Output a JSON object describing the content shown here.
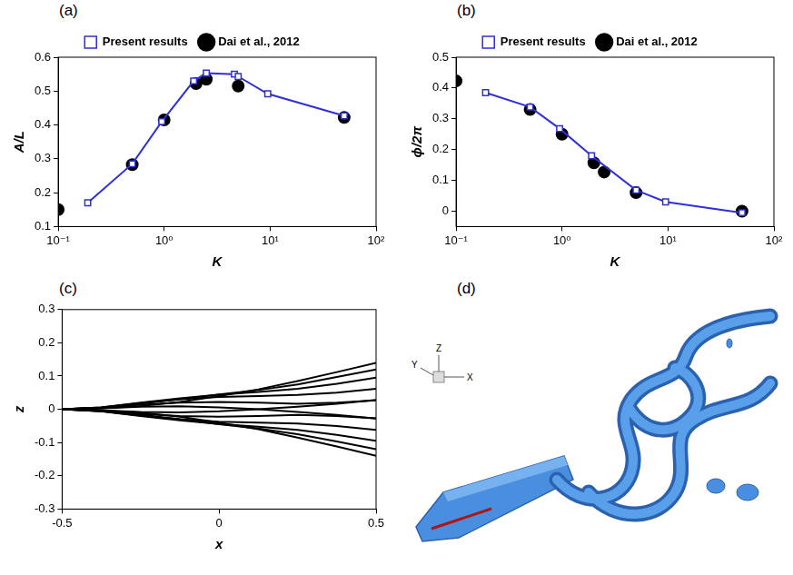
{
  "chart_data": [
    {
      "label": "(a)",
      "type": "line",
      "x_label": "K",
      "y_label": "A/L",
      "log": "x",
      "grid": false,
      "legend": "top",
      "xlim": [
        0.1,
        100
      ],
      "xticks": [
        {
          "value": 0.1,
          "label": "10⁻¹"
        },
        {
          "value": 1,
          "label": "10⁰"
        },
        {
          "value": 10,
          "label": "10¹"
        },
        {
          "value": 100,
          "label": "10²"
        }
      ],
      "ylim": [
        0.1,
        0.6
      ],
      "yticks": [
        0.1,
        0.2,
        0.3,
        0.4,
        0.5,
        0.6
      ],
      "series": [
        {
          "name": "Present results",
          "color": "#2f2fd8",
          "marker": "square_open",
          "line_style": "solid",
          "x": [
            0.19,
            0.5,
            0.95,
            1.9,
            2.5,
            4.6,
            5.0,
            9.5,
            50
          ],
          "values": [
            0.17,
            0.285,
            0.41,
            0.53,
            0.553,
            0.55,
            0.543,
            0.492,
            0.427
          ]
        },
        {
          "name": "Dai et al., 2012",
          "color": "#000000",
          "marker": "circle",
          "line_style": "none",
          "x": [
            0.1,
            0.5,
            1.0,
            2.0,
            2.5,
            5.0,
            50
          ],
          "values": [
            0.15,
            0.283,
            0.415,
            0.522,
            0.535,
            0.515,
            0.422
          ]
        }
      ]
    },
    {
      "label": "(b)",
      "type": "line",
      "x_label": "K",
      "y_label": "ϕ/2π",
      "log": "x",
      "grid": false,
      "legend": "top",
      "xlim": [
        0.1,
        100
      ],
      "xticks": [
        {
          "value": 0.1,
          "label": "10⁻¹"
        },
        {
          "value": 1,
          "label": "10⁰"
        },
        {
          "value": 10,
          "label": "10¹"
        },
        {
          "value": 100,
          "label": "10²"
        }
      ],
      "ylim": [
        -0.05,
        0.5
      ],
      "yticks": [
        0,
        0.1,
        0.2,
        0.3,
        0.4,
        0.5
      ],
      "series": [
        {
          "name": "Present results",
          "color": "#2f2fd8",
          "marker": "square_open",
          "line_style": "solid",
          "x": [
            0.19,
            0.5,
            0.95,
            1.9,
            5.0,
            9.5,
            50
          ],
          "values": [
            0.385,
            0.338,
            0.268,
            0.18,
            0.068,
            0.03,
            -0.005
          ]
        },
        {
          "name": "Dai et al., 2012",
          "color": "#000000",
          "marker": "circle",
          "line_style": "none",
          "x": [
            0.1,
            0.5,
            1.0,
            2.0,
            2.5,
            5.0,
            50
          ],
          "values": [
            0.423,
            0.33,
            0.25,
            0.157,
            0.127,
            0.06,
            0.0
          ]
        }
      ]
    },
    {
      "label": "(c)",
      "type": "line",
      "x_label": "x",
      "y_label": "z",
      "grid": false,
      "xlim": [
        -0.5,
        0.5
      ],
      "xticks": [
        -0.5,
        0,
        0.5
      ],
      "ylim": [
        -0.3,
        0.3
      ],
      "yticks": [
        -0.3,
        -0.2,
        -0.1,
        0,
        0.1,
        0.2,
        0.3
      ],
      "x": [
        -0.5,
        -0.375,
        -0.25,
        -0.125,
        0,
        0.125,
        0.25,
        0.375,
        0.5
      ],
      "series": [
        {
          "color": "#000000",
          "values": [
            0,
            0.003,
            0.01,
            0.022,
            0.04,
            0.06,
            0.085,
            0.112,
            0.14
          ]
        },
        {
          "color": "#000000",
          "values": [
            0,
            0.005,
            0.017,
            0.03,
            0.045,
            0.058,
            0.075,
            0.097,
            0.12
          ]
        },
        {
          "color": "#000000",
          "values": [
            0,
            0.006,
            0.02,
            0.033,
            0.044,
            0.052,
            0.062,
            0.077,
            0.095
          ]
        },
        {
          "color": "#000000",
          "values": [
            0,
            0.006,
            0.019,
            0.03,
            0.037,
            0.04,
            0.043,
            0.05,
            0.062
          ]
        },
        {
          "color": "#000000",
          "values": [
            0,
            0.005,
            0.014,
            0.02,
            0.022,
            0.02,
            0.017,
            0.02,
            0.027
          ]
        },
        {
          "color": "#000000",
          "values": [
            0,
            0.003,
            0.008,
            0.009,
            0.006,
            0,
            -0.008,
            -0.017,
            -0.028
          ]
        },
        {
          "color": "#000000",
          "values": [
            0,
            -0.003,
            -0.01,
            -0.022,
            -0.04,
            -0.06,
            -0.085,
            -0.112,
            -0.14
          ]
        },
        {
          "color": "#000000",
          "values": [
            0,
            -0.005,
            -0.017,
            -0.03,
            -0.045,
            -0.058,
            -0.075,
            -0.097,
            -0.12
          ]
        },
        {
          "color": "#000000",
          "values": [
            0,
            -0.006,
            -0.02,
            -0.033,
            -0.044,
            -0.052,
            -0.062,
            -0.077,
            -0.095
          ]
        },
        {
          "color": "#000000",
          "values": [
            0,
            -0.006,
            -0.019,
            -0.03,
            -0.037,
            -0.04,
            -0.043,
            -0.05,
            -0.062
          ]
        },
        {
          "color": "#000000",
          "values": [
            0,
            -0.005,
            -0.014,
            -0.02,
            -0.022,
            -0.02,
            -0.017,
            -0.02,
            -0.027
          ]
        },
        {
          "color": "#000000",
          "values": [
            0,
            -0.003,
            -0.008,
            -0.009,
            -0.006,
            0,
            0.008,
            0.017,
            0.028
          ]
        }
      ]
    },
    {
      "label": "(d)",
      "type": "image",
      "axis_labels": [
        "Z",
        "Y",
        "X"
      ]
    }
  ]
}
